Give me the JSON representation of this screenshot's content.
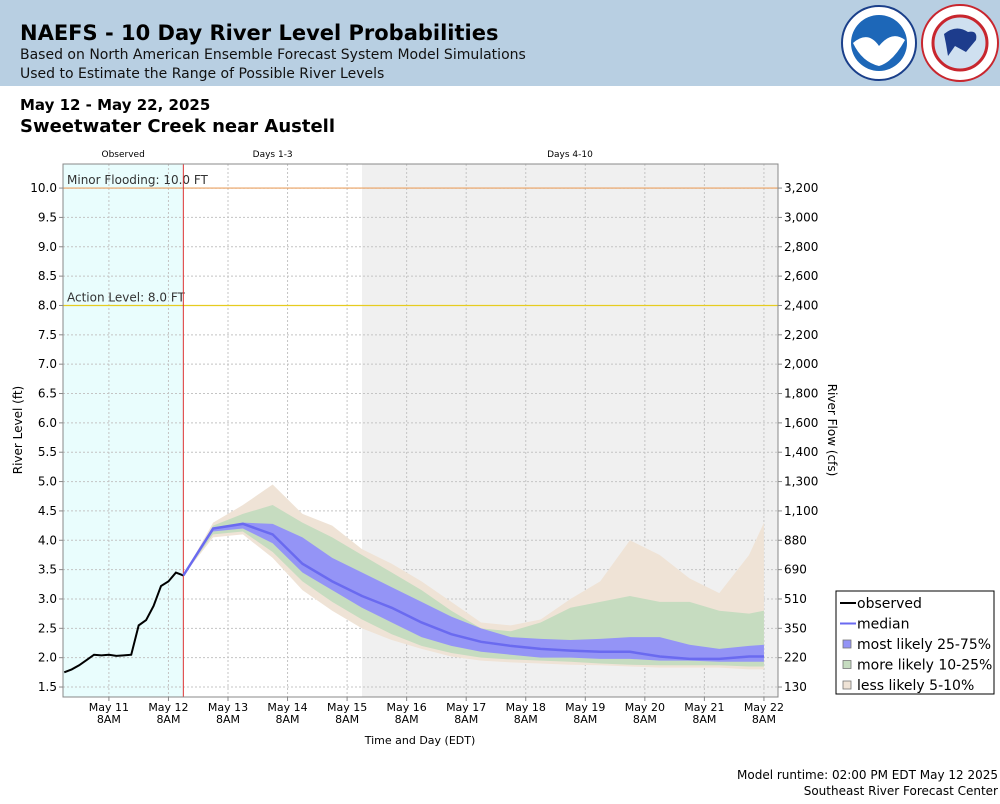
{
  "header": {
    "title": "NAEFS - 10 Day River Level Probabilities",
    "subtitle": [
      "Based on North American Ensemble Forecast System Model Simulations",
      "Used to Estimate the Range of Possible River Levels"
    ]
  },
  "chart_data": {
    "type": "line",
    "subtitle": "May 12 - May 22, 2025",
    "title": "Sweetwater Creek near Austell",
    "y_label": "River Level (ft)",
    "y2_label": "River Flow (cfs)",
    "x_label": "Time and Day (EDT)",
    "xlim": [
      "2025-05-10T13:30",
      "2025-05-22T13:40"
    ],
    "ylim": [
      1.33,
      10.41
    ],
    "grid": true,
    "legend": "bottom-right",
    "yticks": [
      {
        "value": 1.5,
        "label": "1.5"
      },
      {
        "value": 2,
        "label": "2.0"
      },
      2.5,
      {
        "value": 3,
        "label": "3.0"
      },
      3.5,
      {
        "value": 4,
        "label": "4.0"
      },
      4.5,
      {
        "value": 5,
        "label": "5.0"
      },
      5.5,
      {
        "value": 6,
        "label": "6.0"
      },
      6.5,
      {
        "value": 7,
        "label": "7.0"
      },
      7.5,
      {
        "value": 8,
        "label": "8.0"
      },
      8.5,
      {
        "value": 9,
        "label": "9.0"
      },
      9.5,
      {
        "value": 10,
        "label": "10.0"
      }
    ],
    "y2ticks": [
      130,
      220,
      350,
      510,
      690,
      880,
      {
        "value": 1100,
        "label": "1,100"
      },
      {
        "value": 1300,
        "label": "1,300"
      },
      {
        "value": 1400,
        "label": "1,400"
      },
      {
        "value": 1600,
        "label": "1,600"
      },
      {
        "value": 1800,
        "label": "1,800"
      },
      {
        "value": 2000,
        "label": "2,000"
      },
      {
        "value": 2200,
        "label": "2,200"
      },
      {
        "value": 2400,
        "label": "2,400"
      },
      {
        "value": 2600,
        "label": "2,600"
      },
      {
        "value": 2800,
        "label": "2,800"
      },
      {
        "value": 3000,
        "label": "3,000"
      },
      {
        "value": 3200,
        "label": "3,200"
      }
    ],
    "xticks": [
      {
        "value": "2025-05-11T08:00",
        "label": [
          "May 11",
          "8AM"
        ]
      },
      {
        "value": "2025-05-12T08:00",
        "label": [
          "May 12",
          "8AM"
        ]
      },
      {
        "value": "2025-05-13T08:00",
        "label": [
          "May 13",
          "8AM"
        ]
      },
      {
        "value": "2025-05-14T08:00",
        "label": [
          "May 14",
          "8AM"
        ]
      },
      {
        "value": "2025-05-15T08:00",
        "label": [
          "May 15",
          "8AM"
        ]
      },
      {
        "value": "2025-05-16T08:00",
        "label": [
          "May 16",
          "8AM"
        ]
      },
      {
        "value": "2025-05-17T08:00",
        "label": [
          "May 17",
          "8AM"
        ]
      },
      {
        "value": "2025-05-18T08:00",
        "label": [
          "May 18",
          "8AM"
        ]
      },
      {
        "value": "2025-05-19T08:00",
        "label": [
          "May 19",
          "8AM"
        ]
      },
      {
        "value": "2025-05-20T08:00",
        "label": [
          "May 20",
          "8AM"
        ]
      },
      {
        "value": "2025-05-21T08:00",
        "label": [
          "May 21",
          "8AM"
        ]
      },
      {
        "value": "2025-05-22T08:00",
        "label": [
          "May 22",
          "8AM"
        ]
      }
    ],
    "periods": [
      {
        "label": "Observed",
        "start": "2025-05-10T13:30",
        "end": "2025-05-12T14:00",
        "color": "#e9fdfd"
      },
      {
        "label": "Days 1-3",
        "start": "2025-05-12T14:00",
        "end": "2025-05-15T14:00",
        "color": "#ffffff"
      },
      {
        "label": "Days 4-10",
        "start": "2025-05-15T14:00",
        "end": "2025-05-22T13:40",
        "color": "#f0f0f0"
      }
    ],
    "runtime": "2025-05-12T14:00",
    "runtime_color": "#dd3333",
    "thresholds": [
      {
        "label": "Minor Flooding: 10.0 FT",
        "value": 10,
        "color": "#eaa060"
      },
      {
        "label": "Action Level: 8.0 FT",
        "value": 8,
        "color": "#e6cc20"
      }
    ],
    "forecast_x": [
      "2025-05-12T14:00",
      "2025-05-13T02:00",
      "2025-05-13T14:00",
      "2025-05-14T02:00",
      "2025-05-14T14:00",
      "2025-05-15T02:00",
      "2025-05-15T14:00",
      "2025-05-16T02:00",
      "2025-05-16T14:00",
      "2025-05-17T02:00",
      "2025-05-17T14:00",
      "2025-05-18T02:00",
      "2025-05-18T14:00",
      "2025-05-19T02:00",
      "2025-05-19T14:00",
      "2025-05-20T02:00",
      "2025-05-20T14:00",
      "2025-05-21T02:00",
      "2025-05-21T14:00",
      "2025-05-22T02:00",
      "2025-05-22T08:00"
    ],
    "series": [
      {
        "name": "observed",
        "color": "#000000",
        "x": [
          "2025-05-10T14:00",
          "2025-05-10T17:00",
          "2025-05-10T20:00",
          "2025-05-10T23:00",
          "2025-05-11T02:00",
          "2025-05-11T05:00",
          "2025-05-11T08:00",
          "2025-05-11T11:00",
          "2025-05-11T14:00",
          "2025-05-11T17:00",
          "2025-05-11T20:00",
          "2025-05-11T23:00",
          "2025-05-12T02:00",
          "2025-05-12T05:00",
          "2025-05-12T08:00",
          "2025-05-12T11:00",
          "2025-05-12T14:00"
        ],
        "values": [
          1.75,
          1.8,
          1.87,
          1.96,
          2.05,
          2.04,
          2.05,
          2.03,
          2.04,
          2.05,
          2.55,
          2.64,
          2.88,
          3.22,
          3.3,
          3.45,
          3.4
        ]
      },
      {
        "name": "median",
        "color": "#6a6af0",
        "values": [
          3.4,
          4.2,
          4.28,
          4.1,
          3.6,
          3.3,
          3.05,
          2.85,
          2.6,
          2.4,
          2.27,
          2.2,
          2.15,
          2.12,
          2.1,
          2.1,
          2.02,
          1.98,
          1.98,
          2.02,
          2.02
        ]
      }
    ],
    "bands": [
      {
        "name": "most likely 25-75%",
        "color": "#9494f6",
        "lower": [
          3.4,
          4.15,
          4.2,
          3.95,
          3.45,
          3.15,
          2.85,
          2.6,
          2.35,
          2.2,
          2.1,
          2.05,
          2.0,
          2.0,
          1.98,
          1.98,
          1.95,
          1.95,
          1.93,
          1.93,
          1.93
        ],
        "upper": [
          3.4,
          4.2,
          4.3,
          4.28,
          4.05,
          3.7,
          3.45,
          3.2,
          2.95,
          2.7,
          2.5,
          2.35,
          2.32,
          2.3,
          2.32,
          2.35,
          2.35,
          2.22,
          2.15,
          2.2,
          2.22
        ]
      },
      {
        "name": "more likely 10-25%",
        "color": "#c6dcc0",
        "lower": [
          3.4,
          4.1,
          4.15,
          3.8,
          3.3,
          2.95,
          2.65,
          2.4,
          2.2,
          2.08,
          2.0,
          1.97,
          1.95,
          1.93,
          1.9,
          1.88,
          1.87,
          1.87,
          1.87,
          1.85,
          1.85
        ],
        "upper": [
          3.4,
          4.25,
          4.45,
          4.6,
          4.3,
          4.05,
          3.75,
          3.45,
          3.15,
          2.8,
          2.5,
          2.45,
          2.6,
          2.85,
          2.95,
          3.05,
          2.95,
          2.95,
          2.8,
          2.75,
          2.8
        ]
      },
      {
        "name": "less likely 5-10%",
        "color": "#efe3d6",
        "lower": [
          3.4,
          4.05,
          4.1,
          3.7,
          3.15,
          2.8,
          2.5,
          2.3,
          2.15,
          2.02,
          1.95,
          1.92,
          1.9,
          1.88,
          1.87,
          1.85,
          1.83,
          1.83,
          1.83,
          1.8,
          1.8
        ],
        "upper": [
          3.4,
          4.3,
          4.6,
          4.95,
          4.45,
          4.25,
          3.85,
          3.6,
          3.3,
          2.95,
          2.6,
          2.55,
          2.65,
          3.0,
          3.3,
          4.0,
          3.75,
          3.35,
          3.1,
          3.75,
          4.3
        ]
      }
    ]
  },
  "footer": [
    "Model runtime: 02:00 PM EDT May 12 2025",
    "Southeast River Forecast Center"
  ]
}
